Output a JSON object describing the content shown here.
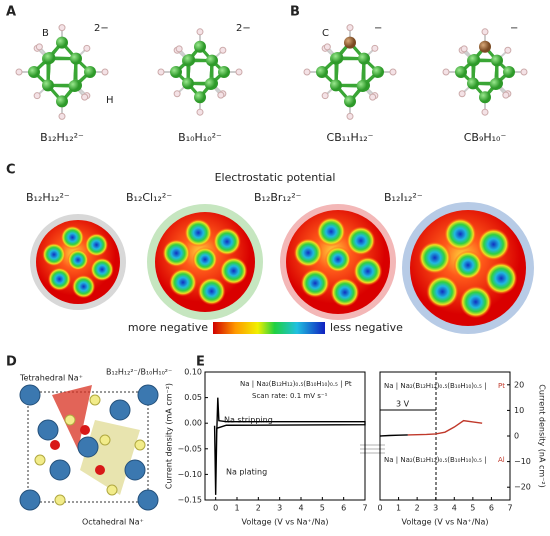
{
  "panel_a": {
    "label": "A",
    "atom_b": "B",
    "charge_1": "2−",
    "charge_2": "2−",
    "atom_h": "H",
    "names": [
      "B₁₂H₁₂²⁻",
      "B₁₀H₁₀²⁻"
    ]
  },
  "panel_b": {
    "label": "B",
    "atom_c": "C",
    "charge_1": "−",
    "charge_2": "−",
    "names": [
      "CB₁₁H₁₂⁻",
      "CB₉H₁₀⁻"
    ]
  },
  "panel_c": {
    "label": "C",
    "title": "Electrostatic potential",
    "names": [
      "B₁₂H₁₂²⁻",
      "B₁₂Cl₁₂²⁻",
      "B₁₂Br₁₂²⁻",
      "B₁₂I₁₂²⁻"
    ],
    "scale_low": "more negative",
    "scale_high": "less negative"
  },
  "panel_d": {
    "label": "D",
    "tetrahedral": "Tetrahedral Na⁺",
    "anions": "B₁₂H₁₂²⁻/B₁₀H₁₀²⁻",
    "octahedral": "Octahedral Na⁺"
  },
  "panel_e": {
    "label": "E"
  },
  "chart_data": [
    {
      "type": "line",
      "title": "Na | Na₂(B₁₂H₁₂)₀.₅(B₁₀H₁₀)₀.₅ | Pt",
      "subtitle": "Scan rate: 0.1 mV s⁻¹",
      "annotations": [
        "Na stripping",
        "Na plating"
      ],
      "xlabel": "Voltage (V vs Na⁺/Na)",
      "ylabel": "Current density (mA cm⁻²)",
      "x": [
        -0.05,
        0,
        0.05,
        0.1,
        0.15,
        0.5,
        7,
        7,
        0.5,
        0.05,
        0
      ],
      "values": [
        -0.005,
        -0.14,
        -0.02,
        0.05,
        0.005,
        0.003,
        0.003,
        -0.003,
        -0.004,
        -0.01,
        -0.14
      ],
      "color": "#000000",
      "xlim": [
        -0.5,
        7
      ],
      "xticks": [
        0,
        1,
        2,
        3,
        4,
        5,
        6,
        7
      ],
      "ylim": [
        -0.15,
        0.1
      ],
      "yticks": [
        {
          "value": -0.15,
          "label": "−0.15"
        },
        {
          "value": -0.1,
          "label": "−0.10"
        },
        {
          "value": -0.05,
          "label": "−0.05"
        },
        {
          "value": 0,
          "label": "0.00"
        },
        {
          "value": 0.05,
          "label": "0.05"
        },
        {
          "value": 0.1,
          "label": "0.10"
        }
      ]
    },
    {
      "type": "line",
      "title": "Na | Na₂(B₁₂H₁₂)₀.₅(B₁₀H₁₀)₀.₅ |",
      "title_end": "Pt",
      "subtitle": "Na | Na₂(B₁₂H₁₂)₀.₅(B₁₀H₁₀)₀.₅ |",
      "subtitle_end": "Al",
      "annotations": [
        "3 V"
      ],
      "xlabel": "Voltage (V vs Na⁺/Na)",
      "y2label": "Current density (nA cm⁻²)",
      "series": [
        {
          "color": "#000000",
          "axis": "y2",
          "x": [
            0,
            0.5,
            1,
            1.5
          ],
          "values": [
            0,
            0.2,
            0.3,
            0.4
          ]
        },
        {
          "color": "#c0392b",
          "axis": "y2",
          "x": [
            1.5,
            2,
            2.5,
            3,
            3.5,
            4,
            4.5,
            5,
            5.5
          ],
          "values": [
            0.4,
            0.5,
            0.6,
            0.8,
            1.5,
            3.5,
            6,
            5.5,
            5
          ]
        }
      ],
      "xlim": [
        0,
        7
      ],
      "xticks": [
        0,
        1,
        2,
        3,
        4,
        5,
        6,
        7
      ],
      "y2lim": [
        -25,
        25
      ],
      "y2ticks": [
        {
          "value": -20,
          "label": "−20"
        },
        {
          "value": -10,
          "label": "−10"
        },
        0,
        10,
        20
      ]
    }
  ]
}
